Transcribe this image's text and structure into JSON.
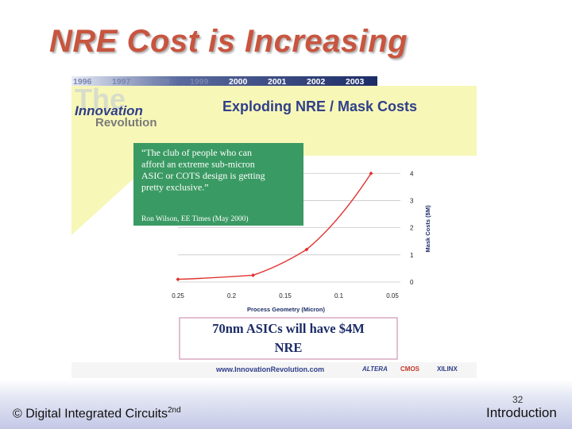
{
  "slide": {
    "title": "NRE Cost is Increasing",
    "footer_left": "© Digital Integrated Circuits",
    "footer_left_sup": "2nd",
    "footer_right": "Introduction",
    "page_number": "32",
    "colors": {
      "title": "#c8553f",
      "quote_box": "#3a9a63",
      "curve": "#e0332f",
      "banner": "#f7f7b8"
    }
  },
  "embedded_slide": {
    "years": [
      "1996",
      "1997",
      "1998",
      "1999",
      "2000",
      "2001",
      "2002",
      "2003"
    ],
    "logo_line1": "Innovation",
    "logo_line2": "Revolution",
    "heading": "Exploding NRE / Mask Costs",
    "quote_lines": [
      "“The club of people who can",
      "afford an extreme sub-micron",
      "ASIC or COTS design is getting",
      "pretty exclusive.”"
    ],
    "quote_source": "Ron Wilson, EE Times (May 2000)",
    "callout_line1": "70nm ASICs will have $4M",
    "callout_line2": "NRE",
    "website": "www.InnovationRevolution.com",
    "partner_logos": [
      "ALTERA",
      "CMOS",
      "XILINX"
    ]
  },
  "chart_data": {
    "type": "line",
    "title": "",
    "xlabel": "Process Geometry (Micron)",
    "ylabel": "Mask Costs ($M)",
    "x_tick_labels": [
      "0.25",
      "0.2",
      "0.15",
      "0.1",
      "0.05"
    ],
    "y_tick_labels": [
      "0",
      "1",
      "2",
      "3",
      "4"
    ],
    "ylim": [
      0,
      4.3
    ],
    "grid": true,
    "series": [
      {
        "x": [
          0.25,
          0.18,
          0.13,
          0.07
        ],
        "y": [
          0.1,
          0.25,
          1.2,
          4.0
        ]
      }
    ]
  }
}
